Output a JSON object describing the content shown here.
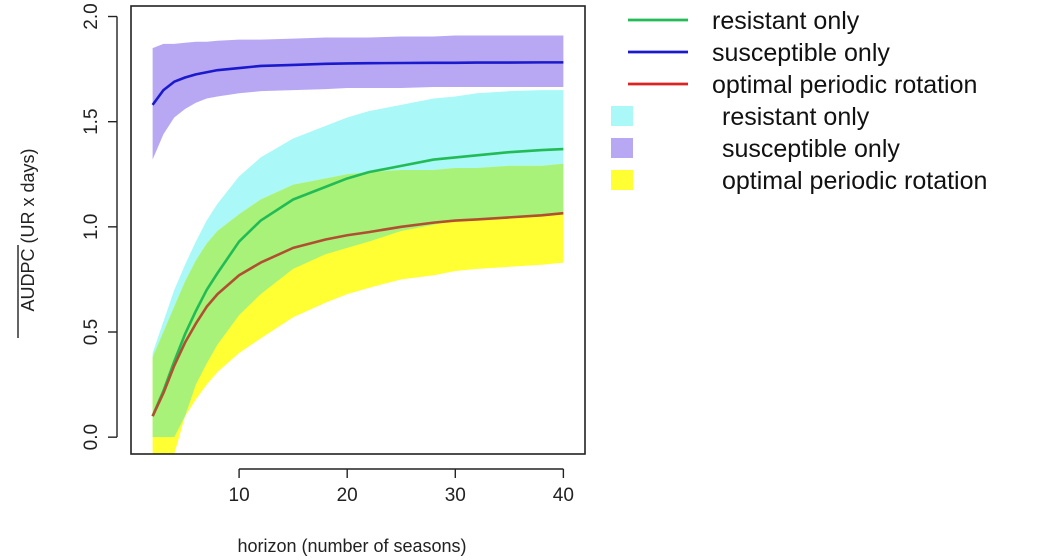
{
  "chart_data": {
    "type": "line",
    "xlabel": "horizon (number of seasons)",
    "ylabel": "AUDPC (UR x days)",
    "xlim": [
      0,
      42
    ],
    "ylim": [
      -0.08,
      2.05
    ],
    "xticks": [
      10,
      20,
      30,
      40
    ],
    "yticks": [
      0.0,
      0.5,
      1.0,
      1.5,
      2.0
    ],
    "x": [
      2,
      3,
      4,
      5,
      6,
      7,
      8,
      10,
      12,
      15,
      18,
      20,
      22,
      25,
      28,
      30,
      32,
      35,
      38,
      40
    ],
    "series": [
      {
        "name": "resistant only",
        "kind": "line",
        "color": "#22bb55",
        "values": [
          0.1,
          0.22,
          0.36,
          0.49,
          0.6,
          0.7,
          0.78,
          0.93,
          1.03,
          1.13,
          1.19,
          1.23,
          1.26,
          1.29,
          1.32,
          1.33,
          1.34,
          1.355,
          1.365,
          1.37
        ]
      },
      {
        "name": "susceptible only",
        "kind": "line",
        "color": "#1a1acc",
        "values": [
          1.58,
          1.65,
          1.69,
          1.71,
          1.725,
          1.735,
          1.745,
          1.755,
          1.765,
          1.77,
          1.775,
          1.777,
          1.778,
          1.779,
          1.78,
          1.78,
          1.781,
          1.781,
          1.782,
          1.782
        ]
      },
      {
        "name": "optimal periodic rotation",
        "kind": "line",
        "color": "#b05030",
        "values": [
          0.1,
          0.21,
          0.34,
          0.45,
          0.54,
          0.62,
          0.68,
          0.77,
          0.83,
          0.9,
          0.94,
          0.96,
          0.975,
          1.0,
          1.02,
          1.03,
          1.035,
          1.045,
          1.055,
          1.065
        ]
      }
    ],
    "bands": [
      {
        "name": "resistant only",
        "color": "#aaf8f8",
        "upper": [
          0.4,
          0.55,
          0.7,
          0.82,
          0.93,
          1.03,
          1.11,
          1.24,
          1.33,
          1.42,
          1.48,
          1.52,
          1.55,
          1.58,
          1.61,
          1.62,
          1.635,
          1.645,
          1.65,
          1.65
        ],
        "lower": [
          0.0,
          0.0,
          0.0,
          0.1,
          0.25,
          0.35,
          0.44,
          0.58,
          0.68,
          0.8,
          0.87,
          0.9,
          0.93,
          0.98,
          1.01,
          1.03,
          1.04,
          1.05,
          1.06,
          1.07
        ]
      },
      {
        "name": "susceptible only",
        "color": "#b8a8f4",
        "upper": [
          1.85,
          1.87,
          1.87,
          1.875,
          1.88,
          1.88,
          1.885,
          1.89,
          1.89,
          1.895,
          1.9,
          1.9,
          1.9,
          1.905,
          1.905,
          1.91,
          1.91,
          1.91,
          1.91,
          1.91
        ],
        "lower": [
          1.32,
          1.44,
          1.52,
          1.56,
          1.59,
          1.61,
          1.62,
          1.635,
          1.645,
          1.65,
          1.655,
          1.66,
          1.66,
          1.66,
          1.665,
          1.665,
          1.665,
          1.665,
          1.665,
          1.665
        ]
      },
      {
        "name": "optimal periodic rotation",
        "color": "#ffff33",
        "upper": [
          0.38,
          0.5,
          0.62,
          0.74,
          0.84,
          0.92,
          0.98,
          1.06,
          1.13,
          1.2,
          1.23,
          1.25,
          1.26,
          1.27,
          1.27,
          1.28,
          1.28,
          1.29,
          1.29,
          1.3
        ],
        "lower": [
          -0.08,
          -0.08,
          -0.08,
          0.1,
          0.18,
          0.25,
          0.31,
          0.4,
          0.47,
          0.57,
          0.64,
          0.68,
          0.71,
          0.75,
          0.77,
          0.79,
          0.8,
          0.81,
          0.82,
          0.83
        ]
      }
    ],
    "legend": {
      "placement": "right",
      "entries": [
        {
          "label": "resistant only",
          "kind": "line",
          "color": "#22bb55"
        },
        {
          "label": "susceptible only",
          "kind": "line",
          "color": "#1a1acc"
        },
        {
          "label": "optimal  periodic rotation",
          "kind": "line",
          "color": "#dd2222"
        },
        {
          "label": "resistant only",
          "kind": "fill",
          "color": "#aaf8f8"
        },
        {
          "label": "susceptible only",
          "kind": "fill",
          "color": "#b8a8f4"
        },
        {
          "label": "optimal  periodic rotation",
          "kind": "fill",
          "color": "#ffff33"
        }
      ]
    },
    "overlap_color": "#a8f27a",
    "grid": false
  }
}
